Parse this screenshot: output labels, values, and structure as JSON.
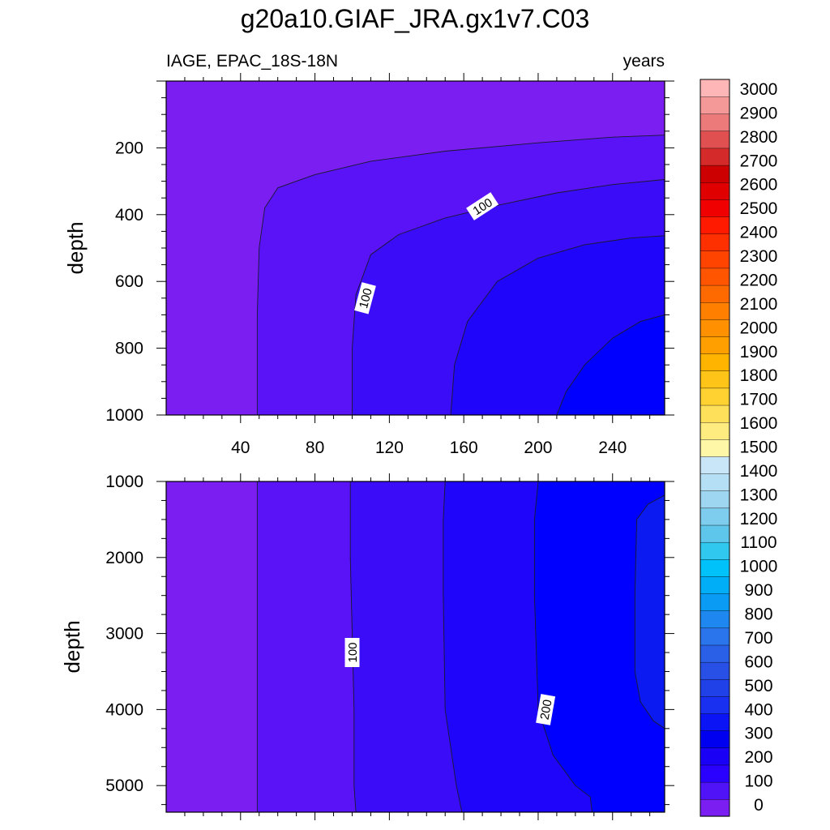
{
  "title": "g20a10.GIAF_JRA.gx1v7.C03",
  "chart_data": [
    {
      "type": "contour",
      "left_label": "IAGE, EPAC_18S-18N",
      "right_label": "years",
      "xlabel": "",
      "ylabel": "depth",
      "x_range": [
        0,
        268
      ],
      "y_range": [
        0,
        1000
      ],
      "y_reversed": true,
      "x_ticks": [
        40,
        80,
        120,
        160,
        200,
        240
      ],
      "y_ticks": [
        200,
        400,
        600,
        800,
        1000
      ],
      "contour_levels": [
        50,
        100,
        150,
        200,
        250
      ],
      "contour_labels": [
        {
          "text": "100",
          "x": 170,
          "y": 375,
          "angle": -33
        },
        {
          "text": "100",
          "x": 107,
          "y": 650,
          "angle": -75
        }
      ],
      "contours": [
        {
          "level": 50,
          "points": [
            [
              49,
              1000
            ],
            [
              49,
              700
            ],
            [
              50,
              500
            ],
            [
              53,
              380
            ],
            [
              60,
              320
            ],
            [
              80,
              280
            ],
            [
              110,
              240
            ],
            [
              150,
              210
            ],
            [
              200,
              185
            ],
            [
              240,
              168
            ],
            [
              268,
              162
            ]
          ]
        },
        {
          "level": 100,
          "points": [
            [
              100,
              1000
            ],
            [
              100,
              800
            ],
            [
              102,
              640
            ],
            [
              110,
              520
            ],
            [
              125,
              460
            ],
            [
              150,
              410
            ],
            [
              180,
              370
            ],
            [
              210,
              335
            ],
            [
              240,
              310
            ],
            [
              268,
              295
            ]
          ]
        },
        {
          "level": 150,
          "points": [
            [
              153,
              1000
            ],
            [
              155,
              850
            ],
            [
              162,
              720
            ],
            [
              178,
              600
            ],
            [
              200,
              530
            ],
            [
              225,
              490
            ],
            [
              250,
              470
            ],
            [
              268,
              463
            ]
          ]
        },
        {
          "level": 200,
          "points": [
            [
              210,
              1000
            ],
            [
              215,
              930
            ],
            [
              225,
              850
            ],
            [
              240,
              770
            ],
            [
              255,
              720
            ],
            [
              268,
              700
            ]
          ]
        }
      ]
    },
    {
      "type": "contour",
      "xlabel": "",
      "ylabel": "depth",
      "x_range": [
        0,
        268
      ],
      "y_range": [
        1000,
        5350
      ],
      "y_reversed": true,
      "y_ticks": [
        1000,
        2000,
        3000,
        4000,
        5000
      ],
      "contour_levels": [
        50,
        100,
        150,
        200,
        250
      ],
      "contour_labels": [
        {
          "text": "100",
          "x": 100,
          "y": 3250,
          "angle": -90
        },
        {
          "text": "200",
          "x": 204,
          "y": 4000,
          "angle": -80
        }
      ],
      "contours": [
        {
          "level": 50,
          "points": [
            [
              49,
              1000
            ],
            [
              49,
              2000
            ],
            [
              49,
              3000
            ],
            [
              49,
              4000
            ],
            [
              49,
              5000
            ],
            [
              49,
              5350
            ]
          ]
        },
        {
          "level": 100,
          "points": [
            [
              99,
              1000
            ],
            [
              99,
              2000
            ],
            [
              100,
              3000
            ],
            [
              101,
              4000
            ],
            [
              101,
              5000
            ],
            [
              102,
              5350
            ]
          ]
        },
        {
          "level": 150,
          "points": [
            [
              150,
              1000
            ],
            [
              149,
              1500
            ],
            [
              149,
              2500
            ],
            [
              150,
              4000
            ],
            [
              156,
              5000
            ],
            [
              159,
              5350
            ]
          ]
        },
        {
          "level": 200,
          "points": [
            [
              200,
              1000
            ],
            [
              198,
              1500
            ],
            [
              198,
              2500
            ],
            [
              200,
              4000
            ],
            [
              208,
              4600
            ],
            [
              220,
              5000
            ],
            [
              228,
              5150
            ],
            [
              229,
              5350
            ]
          ]
        },
        {
          "level": 250,
          "points": [
            [
              268,
              1180
            ],
            [
              259,
              1300
            ],
            [
              253,
              1500
            ],
            [
              252,
              2500
            ],
            [
              252,
              3500
            ],
            [
              255,
              3900
            ],
            [
              262,
              4150
            ],
            [
              268,
              4250
            ]
          ]
        }
      ]
    }
  ],
  "colorbar": {
    "ticks": [
      "3000",
      "2900",
      "2800",
      "2700",
      "2600",
      "2500",
      "2400",
      "2300",
      "2200",
      "2100",
      "2000",
      "1900",
      "1800",
      "1700",
      "1600",
      "1500",
      "1400",
      "1300",
      "1200",
      "1100",
      "1000",
      "900",
      "800",
      "700",
      "600",
      "500",
      "400",
      "300",
      "200",
      "100",
      "0"
    ],
    "colors": [
      "#7a1ef2",
      "#5012f7",
      "#2a00ff",
      "#1a00f5",
      "#0000f0",
      "#0a14f5",
      "#1a30f0",
      "#2040e8",
      "#2850e6",
      "#2a60e8",
      "#2a75ec",
      "#1e88f0",
      "#0a9cf5",
      "#00aef8",
      "#00c2fa",
      "#30c8ee",
      "#5ec6ea",
      "#7ecdee",
      "#9ed6f2",
      "#b4dff5",
      "#c8e6f8",
      "#fff7a8",
      "#ffec80",
      "#ffe05a",
      "#ffd232",
      "#ffc418",
      "#ffb400",
      "#ffa000",
      "#ff9000",
      "#ff7f00",
      "#ff6a00",
      "#ff5500",
      "#ff4400",
      "#ff3000",
      "#ff1a00",
      "#f00000",
      "#e00000",
      "#cc0000",
      "#d42a2a",
      "#e05050",
      "#ec7a7a",
      "#f59898",
      "#ffb6b6"
    ]
  },
  "region_colors": [
    "#7a1ef2",
    "#5a12f6",
    "#3a0cf8",
    "#1f06fb",
    "#0000ff",
    "#0a1af0"
  ]
}
